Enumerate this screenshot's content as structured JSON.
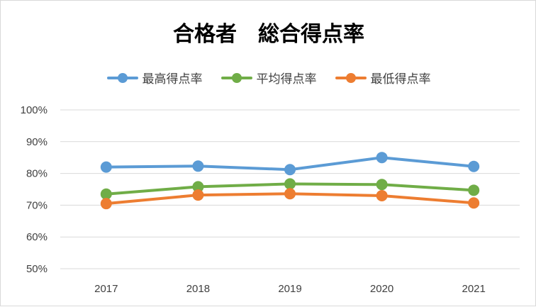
{
  "chart_data": {
    "type": "line",
    "title": "合格者　総合得点率",
    "categories": [
      "2017",
      "2018",
      "2019",
      "2020",
      "2021"
    ],
    "ylim": [
      50,
      100
    ],
    "yticks": [
      "50%",
      "60%",
      "70%",
      "80%",
      "90%",
      "100%"
    ],
    "grid": "horizontal",
    "legend_position": "top",
    "series": [
      {
        "name": "最高得点率",
        "color": "#5b9bd5",
        "values": [
          82.0,
          82.3,
          81.2,
          85.0,
          82.2
        ]
      },
      {
        "name": "平均得点率",
        "color": "#70ad47",
        "values": [
          73.5,
          75.8,
          76.7,
          76.5,
          74.7
        ]
      },
      {
        "name": "最低得点率",
        "color": "#ed7d31",
        "values": [
          70.5,
          73.2,
          73.6,
          73.0,
          70.7
        ]
      }
    ]
  }
}
